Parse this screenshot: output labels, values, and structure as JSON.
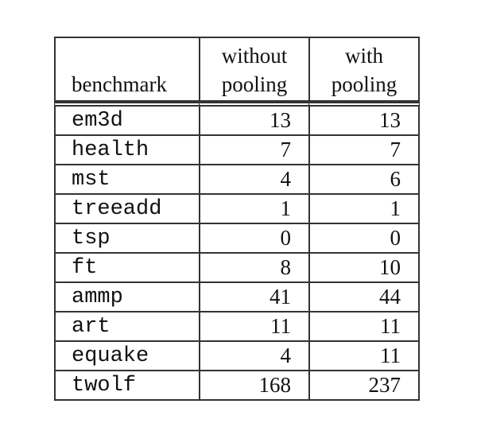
{
  "table": {
    "headers": [
      [
        "benchmark"
      ],
      [
        "without",
        "pooling"
      ],
      [
        "with",
        "pooling"
      ]
    ],
    "rows": [
      {
        "benchmark": "em3d",
        "without_pooling": "13",
        "with_pooling": "13"
      },
      {
        "benchmark": "health",
        "without_pooling": "7",
        "with_pooling": "7"
      },
      {
        "benchmark": "mst",
        "without_pooling": "4",
        "with_pooling": "6"
      },
      {
        "benchmark": "treeadd",
        "without_pooling": "1",
        "with_pooling": "1"
      },
      {
        "benchmark": "tsp",
        "without_pooling": "0",
        "with_pooling": "0"
      },
      {
        "benchmark": "ft",
        "without_pooling": "8",
        "with_pooling": "10"
      },
      {
        "benchmark": "ammp",
        "without_pooling": "41",
        "with_pooling": "44"
      },
      {
        "benchmark": "art",
        "without_pooling": "11",
        "with_pooling": "11"
      },
      {
        "benchmark": "equake",
        "without_pooling": "4",
        "with_pooling": "11"
      },
      {
        "benchmark": "twolf",
        "without_pooling": "168",
        "with_pooling": "237"
      }
    ]
  }
}
